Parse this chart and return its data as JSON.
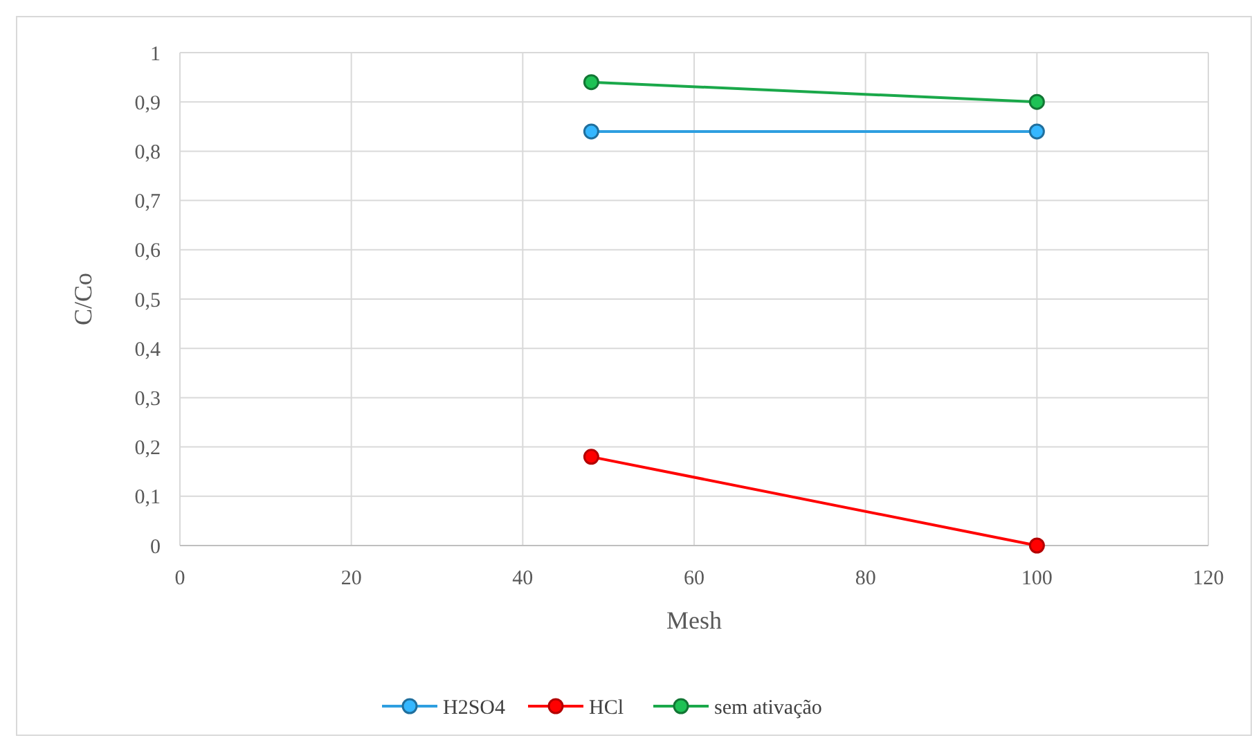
{
  "chart_data": {
    "type": "line",
    "xlabel": "Mesh",
    "ylabel": "C/Co",
    "x": [
      48,
      100
    ],
    "series": [
      {
        "name": "H2SO4",
        "color": "#2e9fe0",
        "values": [
          0.84,
          0.84
        ]
      },
      {
        "name": "HCl",
        "color": "#ff0000",
        "values": [
          0.18,
          0
        ]
      },
      {
        "name": "sem ativação",
        "color": "#1aa84a",
        "values": [
          0.94,
          0.9
        ]
      }
    ],
    "xlim": [
      0,
      120
    ],
    "xticks": [
      0,
      20,
      40,
      60,
      80,
      100,
      120
    ],
    "ylim": [
      0,
      1
    ],
    "yticks": [
      0,
      {
        "value": 0.1,
        "label": "0,1"
      },
      {
        "value": 0.2,
        "label": "0,2"
      },
      {
        "value": 0.3,
        "label": "0,3"
      },
      {
        "value": 0.4,
        "label": "0,4"
      },
      {
        "value": 0.5,
        "label": "0,5"
      },
      {
        "value": 0.6,
        "label": "0,6"
      },
      {
        "value": 0.7,
        "label": "0,7"
      },
      {
        "value": 0.8,
        "label": "0,8"
      },
      {
        "value": 0.9,
        "label": "0,9"
      },
      1
    ],
    "grid": true,
    "legend": "bottom",
    "marker": "circle",
    "line_style": "solid"
  }
}
